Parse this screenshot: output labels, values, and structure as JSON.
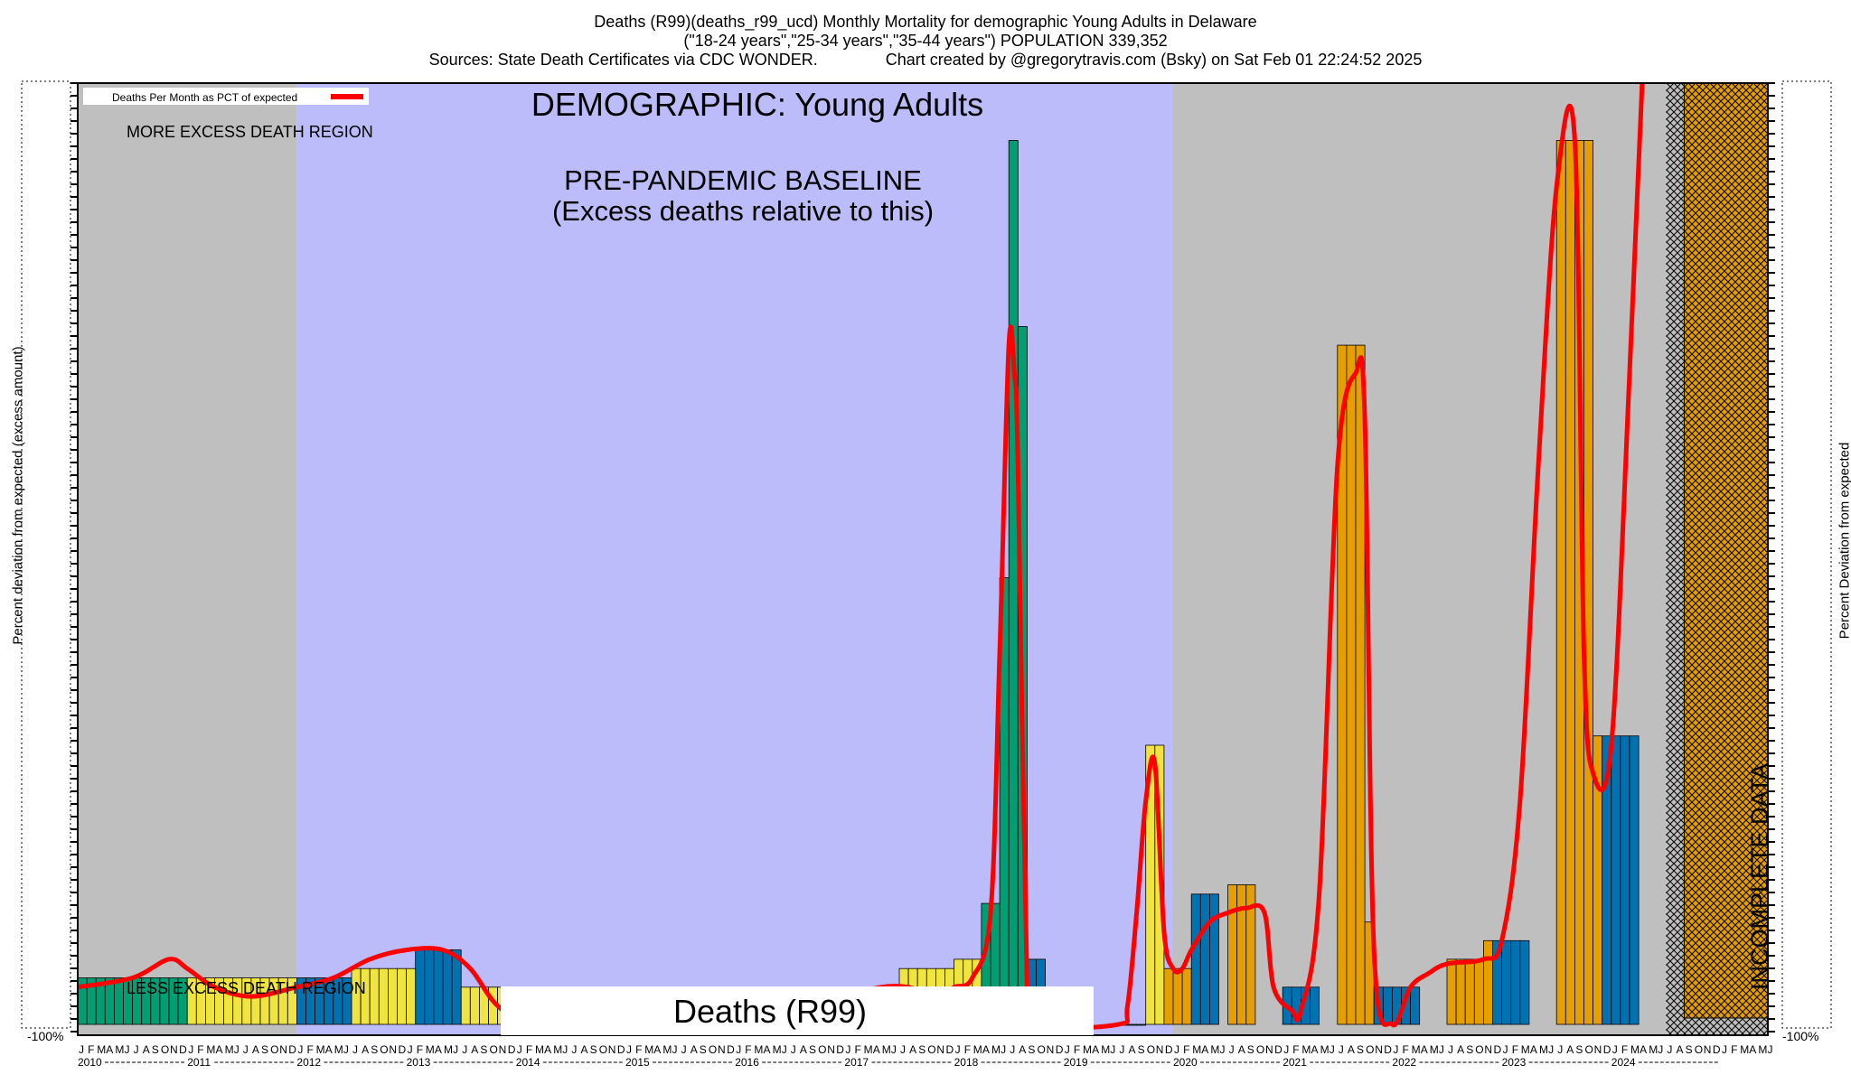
{
  "title": {
    "line1": "Deaths (R99)(deaths_r99_ucd) Monthly Mortality for demographic Young Adults in Delaware",
    "line2": "(\"18-24 years\",\"25-34 years\",\"35-44 years\") POPULATION 339,352",
    "line3": "Sources: State Death Certificates via CDC WONDER.               Chart created by @gregorytravis.com (Bsky) on Sat Feb 01 22:24:52 2025"
  },
  "labels": {
    "demographic": "DEMOGRAPHIC: Young Adults",
    "baseline_line1": "PRE-PANDEMIC BASELINE",
    "baseline_line2": "(Excess deaths relative to this)",
    "more_region": "MORE EXCESS DEATH REGION",
    "less_region": "LESS EXCESS DEATH REGION",
    "cause_box": "Deaths (R99)",
    "incomplete": "INCOMPLETE DATA",
    "legend": "Deaths Per Month as PCT of expected",
    "ylabel_left": "Percent deviation from expected (excess amount)",
    "ylabel_right": "Percent Deviation from expected",
    "bottom_left_tick": "-100%",
    "bottom_right_tick": "-100%"
  },
  "colors": {
    "gray_region": "#bfbfbf",
    "baseline_region": "#bcbcfb",
    "line": "#ff0000",
    "bar_yellow": "#f0e442",
    "bar_green": "#009e73",
    "bar_orange": "#e69f00",
    "bar_blue": "#0072b2",
    "hatch": "#000000"
  },
  "chart_data": {
    "type": "bar",
    "title": "Deaths (R99)(deaths_r99_ucd) Monthly Mortality for demographic Young Adults in Delaware",
    "ylabel": "Percent deviation from expected (excess amount)",
    "ylabel_right": "Percent Deviation from expected",
    "month_letters": [
      "J",
      "F",
      "M",
      "A",
      "M",
      "J",
      "J",
      "A",
      "S",
      "O",
      "N",
      "D"
    ],
    "years": [
      "2010",
      "2011",
      "2012",
      "2013",
      "2014",
      "2015",
      "2016",
      "2017",
      "2018",
      "2019",
      "2020",
      "2021",
      "2022",
      "2023",
      "2024"
    ],
    "bars": [
      {
        "start": 0,
        "months": 12,
        "value": -95,
        "color": "bar_green"
      },
      {
        "start": 12,
        "months": 12,
        "value": -95,
        "color": "bar_yellow"
      },
      {
        "start": 24,
        "months": 6,
        "value": -95,
        "color": "bar_blue"
      },
      {
        "start": 30,
        "months": 7,
        "value": -94,
        "color": "bar_yellow"
      },
      {
        "start": 37,
        "months": 5,
        "value": -92,
        "color": "bar_blue"
      },
      {
        "start": 42,
        "months": 6,
        "value": -96,
        "color": "bar_yellow"
      },
      {
        "start": 84,
        "months": 6,
        "value": -96,
        "color": "bar_orange"
      },
      {
        "start": 90,
        "months": 6,
        "value": -94,
        "color": "bar_yellow"
      },
      {
        "start": 96,
        "months": 3,
        "value": -93,
        "color": "bar_yellow"
      },
      {
        "start": 99,
        "months": 2,
        "value": -87,
        "color": "bar_green"
      },
      {
        "start": 101,
        "months": 1,
        "value": -52,
        "color": "bar_green"
      },
      {
        "start": 102,
        "months": 1,
        "value": -5,
        "color": "bar_green"
      },
      {
        "start": 103,
        "months": 1,
        "value": -25,
        "color": "bar_green"
      },
      {
        "start": 104,
        "months": 2,
        "value": -93,
        "color": "bar_blue"
      },
      {
        "start": 114,
        "months": 3,
        "value": -100,
        "color": "bar_green"
      },
      {
        "start": 117,
        "months": 2,
        "value": -70,
        "color": "bar_yellow"
      },
      {
        "start": 119,
        "months": 3,
        "value": -94,
        "color": "bar_orange"
      },
      {
        "start": 122,
        "months": 3,
        "value": -86,
        "color": "bar_blue"
      },
      {
        "start": 126,
        "months": 3,
        "value": -85,
        "color": "bar_orange"
      },
      {
        "start": 132,
        "months": 4,
        "value": -96,
        "color": "bar_blue"
      },
      {
        "start": 138,
        "months": 3,
        "value": -27,
        "color": "bar_orange"
      },
      {
        "start": 141,
        "months": 1,
        "value": -89,
        "color": "bar_orange"
      },
      {
        "start": 142,
        "months": 5,
        "value": -96,
        "color": "bar_blue"
      },
      {
        "start": 150,
        "months": 4,
        "value": -93,
        "color": "bar_orange"
      },
      {
        "start": 154,
        "months": 1,
        "value": -91,
        "color": "bar_orange"
      },
      {
        "start": 155,
        "months": 4,
        "value": -91,
        "color": "bar_blue"
      },
      {
        "start": 162,
        "months": 4,
        "value": -5,
        "color": "bar_orange"
      },
      {
        "start": 166,
        "months": 1,
        "value": -69,
        "color": "bar_orange"
      },
      {
        "start": 167,
        "months": 4,
        "value": -69,
        "color": "bar_blue"
      }
    ],
    "line": [
      {
        "m": 0,
        "v": -96
      },
      {
        "m": 6,
        "v": -95
      },
      {
        "m": 10,
        "v": -93
      },
      {
        "m": 12,
        "v": -94
      },
      {
        "m": 15,
        "v": -96
      },
      {
        "m": 19,
        "v": -97
      },
      {
        "m": 24,
        "v": -96
      },
      {
        "m": 28,
        "v": -95
      },
      {
        "m": 32,
        "v": -93
      },
      {
        "m": 36,
        "v": -92
      },
      {
        "m": 40,
        "v": -92
      },
      {
        "m": 43,
        "v": -94
      },
      {
        "m": 46,
        "v": -98
      },
      {
        "m": 50,
        "v": -100
      },
      {
        "m": 60,
        "v": -100
      },
      {
        "m": 70,
        "v": -100
      },
      {
        "m": 78,
        "v": -99
      },
      {
        "m": 84,
        "v": -97
      },
      {
        "m": 88,
        "v": -96
      },
      {
        "m": 91,
        "v": -96
      },
      {
        "m": 94,
        "v": -97
      },
      {
        "m": 96,
        "v": -96
      },
      {
        "m": 98,
        "v": -95
      },
      {
        "m": 100,
        "v": -88
      },
      {
        "m": 101,
        "v": -60
      },
      {
        "m": 102,
        "v": -27
      },
      {
        "m": 102.6,
        "v": -30
      },
      {
        "m": 103,
        "v": -40
      },
      {
        "m": 104,
        "v": -96
      },
      {
        "m": 105,
        "v": -100
      },
      {
        "m": 114,
        "v": -100
      },
      {
        "m": 115,
        "v": -98
      },
      {
        "m": 116,
        "v": -88
      },
      {
        "m": 117,
        "v": -76
      },
      {
        "m": 118,
        "v": -72
      },
      {
        "m": 119,
        "v": -90
      },
      {
        "m": 120,
        "v": -94
      },
      {
        "m": 121,
        "v": -94
      },
      {
        "m": 122,
        "v": -92
      },
      {
        "m": 124,
        "v": -89
      },
      {
        "m": 126,
        "v": -88
      },
      {
        "m": 128,
        "v": -87.5
      },
      {
        "m": 130,
        "v": -88
      },
      {
        "m": 131,
        "v": -96
      },
      {
        "m": 133,
        "v": -98.5
      },
      {
        "m": 134,
        "v": -98.5
      },
      {
        "m": 136,
        "v": -86
      },
      {
        "m": 138,
        "v": -40
      },
      {
        "m": 140,
        "v": -30
      },
      {
        "m": 141,
        "v": -35
      },
      {
        "m": 142,
        "v": -92
      },
      {
        "m": 144,
        "v": -100
      },
      {
        "m": 146,
        "v": -96
      },
      {
        "m": 148,
        "v": -94.5
      },
      {
        "m": 150,
        "v": -93.5
      },
      {
        "m": 154,
        "v": -93
      },
      {
        "m": 156,
        "v": -91
      },
      {
        "m": 158,
        "v": -76
      },
      {
        "m": 160,
        "v": -40
      },
      {
        "m": 162,
        "v": -10
      },
      {
        "m": 164,
        "v": -5
      },
      {
        "m": 165,
        "v": -60
      },
      {
        "m": 166,
        "v": -73
      },
      {
        "m": 168,
        "v": -70
      },
      {
        "m": 170,
        "v": -30
      },
      {
        "m": 173,
        "v": 40
      },
      {
        "m": 175,
        "v": 100
      }
    ],
    "regions": [
      {
        "name": "more-excess",
        "from": 0,
        "to": 24
      },
      {
        "name": "pre-pandemic-baseline",
        "from": 24,
        "to": 120
      },
      {
        "name": "post-baseline",
        "from": 120,
        "to": 174
      },
      {
        "name": "incomplete-data",
        "from": 174,
        "to": 186
      }
    ],
    "grid": false,
    "legend_position": "top-left"
  }
}
